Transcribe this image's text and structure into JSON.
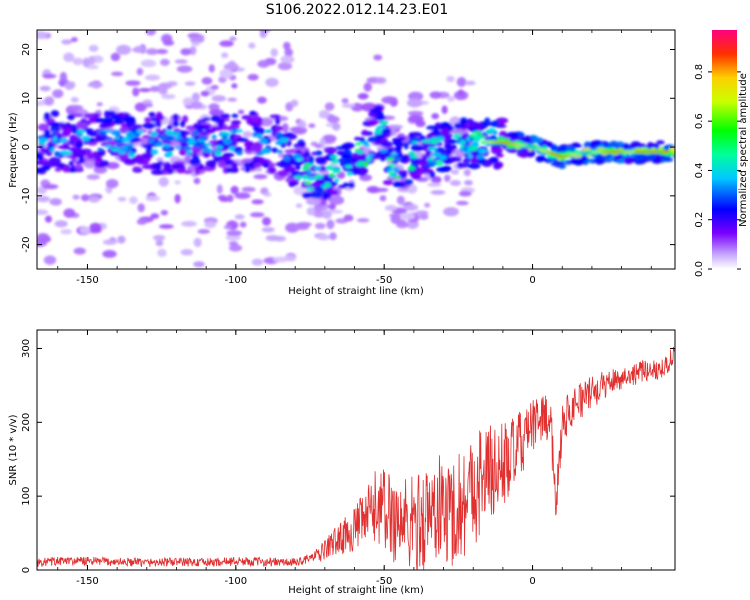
{
  "figure": {
    "title": "S106.2022.012.14.23.E01"
  },
  "chart_data": [
    {
      "type": "heatmap",
      "xlabel": "Height of straight line (km)",
      "ylabel": "Frequency (Hz)",
      "xlim": [
        -167,
        48
      ],
      "ylim": [
        -25,
        24
      ],
      "xticks": [
        -150,
        -100,
        -50,
        0
      ],
      "yticks": [
        -20,
        -10,
        0,
        10,
        20
      ],
      "colorbar": {
        "label": "Normalized spectral amplitude",
        "range": [
          0,
          0.97
        ],
        "ticks": [
          0.0,
          0.2,
          0.4,
          0.6,
          0.8
        ],
        "tick_labels": [
          "0.0",
          "0.2",
          "0.4",
          "0.6",
          "0.8"
        ]
      },
      "description_trend": [
        {
          "x": -160,
          "y": 1
        },
        {
          "x": -140,
          "y": 1
        },
        {
          "x": -120,
          "y": 0.5
        },
        {
          "x": -100,
          "y": 1
        },
        {
          "x": -85,
          "y": 1
        },
        {
          "x": -75,
          "y": -6
        },
        {
          "x": -62,
          "y": -4
        },
        {
          "x": -55,
          "y": 0
        },
        {
          "x": -52,
          "y": 5
        },
        {
          "x": -48,
          "y": -4
        },
        {
          "x": -40,
          "y": -2
        },
        {
          "x": -30,
          "y": 0
        },
        {
          "x": -20,
          "y": 1
        },
        {
          "x": -10,
          "y": 1
        },
        {
          "x": 0,
          "y": 0
        },
        {
          "x": 10,
          "y": -2
        },
        {
          "x": 20,
          "y": -1
        },
        {
          "x": 30,
          "y": -1
        },
        {
          "x": 46,
          "y": -1
        }
      ]
    },
    {
      "type": "line",
      "xlabel": "Height of straight line (km)",
      "ylabel": "SNR (10 * v/v)",
      "xlim": [
        -167,
        48
      ],
      "ylim": [
        0,
        325
      ],
      "xticks": [
        -150,
        -100,
        -50,
        0
      ],
      "yticks": [
        0,
        100,
        200,
        300
      ],
      "line_color": "#e03030",
      "series": [
        {
          "x": [
            -167,
            -160,
            -150,
            -140,
            -130,
            -120,
            -110,
            -100,
            -90,
            -80,
            -72,
            -68,
            -64,
            -60,
            -56,
            -52,
            -50,
            -48,
            -44,
            -40,
            -36,
            -32,
            -28,
            -24,
            -20,
            -16,
            -12,
            -8,
            -4,
            0,
            4,
            6,
            8,
            10,
            14,
            18,
            22,
            26,
            30,
            34,
            38,
            42,
            44,
            46,
            48
          ],
          "values": [
            10,
            12,
            12,
            11,
            10,
            11,
            10,
            12,
            11,
            10,
            20,
            35,
            45,
            55,
            70,
            90,
            80,
            75,
            65,
            60,
            70,
            85,
            75,
            90,
            110,
            130,
            135,
            150,
            170,
            195,
            210,
            200,
            95,
            200,
            225,
            235,
            245,
            255,
            260,
            265,
            270,
            272,
            275,
            280,
            300
          ],
          "noise_envelope": [
            {
              "x": -167,
              "amp": 6
            },
            {
              "x": -75,
              "amp": 6
            },
            {
              "x": -60,
              "amp": 30
            },
            {
              "x": -50,
              "amp": 60
            },
            {
              "x": -40,
              "amp": 70
            },
            {
              "x": -20,
              "amp": 80
            },
            {
              "x": -10,
              "amp": 60
            },
            {
              "x": 0,
              "amp": 35
            },
            {
              "x": 10,
              "amp": 30
            },
            {
              "x": 30,
              "amp": 15
            },
            {
              "x": 48,
              "amp": 15
            }
          ]
        }
      ]
    }
  ]
}
